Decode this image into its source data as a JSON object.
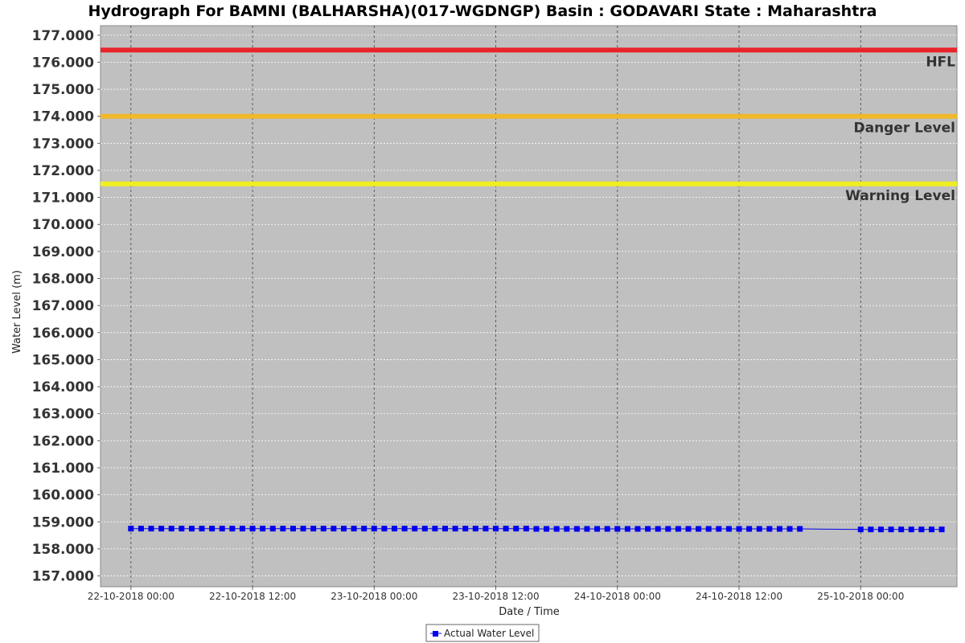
{
  "chart_data": {
    "type": "line",
    "title": "Hydrograph For BAMNI (BALHARSHA)(017-WGDNGP) Basin : GODAVARI State : Maharashtra",
    "xlabel": "Date / Time",
    "ylabel": "Water Level (m)",
    "ylim": [
      156.6,
      177.35
    ],
    "y_ticks": [
      157,
      158,
      159,
      160,
      161,
      162,
      163,
      164,
      165,
      166,
      167,
      168,
      169,
      170,
      171,
      172,
      173,
      174,
      175,
      176,
      177
    ],
    "y_tick_labels": [
      "157.000",
      "158.000",
      "159.000",
      "160.000",
      "161.000",
      "162.000",
      "163.000",
      "164.000",
      "165.000",
      "166.000",
      "167.000",
      "168.000",
      "169.000",
      "170.000",
      "171.000",
      "172.000",
      "173.000",
      "174.000",
      "175.000",
      "176.000",
      "177.000"
    ],
    "x_ticks": [
      "22-10-2018 00:00",
      "22-10-2018 12:00",
      "23-10-2018 00:00",
      "23-10-2018 12:00",
      "24-10-2018 00:00",
      "24-10-2018 12:00",
      "25-10-2018 00:00"
    ],
    "xlim": [
      "21-10-2018 21:00",
      "25-10-2018 09:30"
    ],
    "grid": true,
    "legend": "bottom-center",
    "background_color": "#c0c0c0",
    "reference_lines": [
      {
        "name": "HFL",
        "value": 176.45,
        "color": "#e8242a"
      },
      {
        "name": "Danger Level",
        "value": 174.0,
        "color": "#f0b82a"
      },
      {
        "name": "Warning Level",
        "value": 171.5,
        "color": "#eeee22"
      }
    ],
    "series": [
      {
        "name": "Actual Water Level",
        "color": "#0000ee",
        "x": [
          "22-10-2018 00:00",
          "22-10-2018 01:00",
          "22-10-2018 02:00",
          "22-10-2018 03:00",
          "22-10-2018 04:00",
          "22-10-2018 05:00",
          "22-10-2018 06:00",
          "22-10-2018 07:00",
          "22-10-2018 08:00",
          "22-10-2018 09:00",
          "22-10-2018 10:00",
          "22-10-2018 11:00",
          "22-10-2018 12:00",
          "22-10-2018 13:00",
          "22-10-2018 14:00",
          "22-10-2018 15:00",
          "22-10-2018 16:00",
          "22-10-2018 17:00",
          "22-10-2018 18:00",
          "22-10-2018 19:00",
          "22-10-2018 20:00",
          "22-10-2018 21:00",
          "22-10-2018 22:00",
          "22-10-2018 23:00",
          "23-10-2018 00:00",
          "23-10-2018 01:00",
          "23-10-2018 02:00",
          "23-10-2018 03:00",
          "23-10-2018 04:00",
          "23-10-2018 05:00",
          "23-10-2018 06:00",
          "23-10-2018 07:00",
          "23-10-2018 08:00",
          "23-10-2018 09:00",
          "23-10-2018 10:00",
          "23-10-2018 11:00",
          "23-10-2018 12:00",
          "23-10-2018 13:00",
          "23-10-2018 14:00",
          "23-10-2018 15:00",
          "23-10-2018 16:00",
          "23-10-2018 17:00",
          "23-10-2018 18:00",
          "23-10-2018 19:00",
          "23-10-2018 20:00",
          "23-10-2018 21:00",
          "23-10-2018 22:00",
          "23-10-2018 23:00",
          "24-10-2018 00:00",
          "24-10-2018 01:00",
          "24-10-2018 02:00",
          "24-10-2018 03:00",
          "24-10-2018 04:00",
          "24-10-2018 05:00",
          "24-10-2018 06:00",
          "24-10-2018 07:00",
          "24-10-2018 08:00",
          "24-10-2018 09:00",
          "24-10-2018 10:00",
          "24-10-2018 11:00",
          "24-10-2018 12:00",
          "24-10-2018 13:00",
          "24-10-2018 14:00",
          "24-10-2018 15:00",
          "24-10-2018 16:00",
          "24-10-2018 17:00",
          "24-10-2018 18:00",
          "25-10-2018 00:00",
          "25-10-2018 01:00",
          "25-10-2018 02:00",
          "25-10-2018 03:00",
          "25-10-2018 04:00",
          "25-10-2018 05:00",
          "25-10-2018 06:00",
          "25-10-2018 07:00",
          "25-10-2018 08:00"
        ],
        "values": [
          158.75,
          158.75,
          158.75,
          158.75,
          158.75,
          158.75,
          158.75,
          158.75,
          158.75,
          158.75,
          158.75,
          158.75,
          158.75,
          158.75,
          158.75,
          158.75,
          158.75,
          158.75,
          158.75,
          158.75,
          158.75,
          158.75,
          158.75,
          158.75,
          158.75,
          158.75,
          158.75,
          158.75,
          158.75,
          158.75,
          158.75,
          158.75,
          158.75,
          158.75,
          158.75,
          158.75,
          158.75,
          158.75,
          158.75,
          158.75,
          158.74,
          158.74,
          158.74,
          158.74,
          158.74,
          158.74,
          158.74,
          158.74,
          158.74,
          158.74,
          158.74,
          158.74,
          158.74,
          158.74,
          158.74,
          158.74,
          158.74,
          158.74,
          158.74,
          158.74,
          158.74,
          158.74,
          158.74,
          158.74,
          158.74,
          158.74,
          158.74,
          158.72,
          158.72,
          158.72,
          158.72,
          158.72,
          158.72,
          158.72,
          158.72,
          158.72
        ]
      }
    ]
  }
}
